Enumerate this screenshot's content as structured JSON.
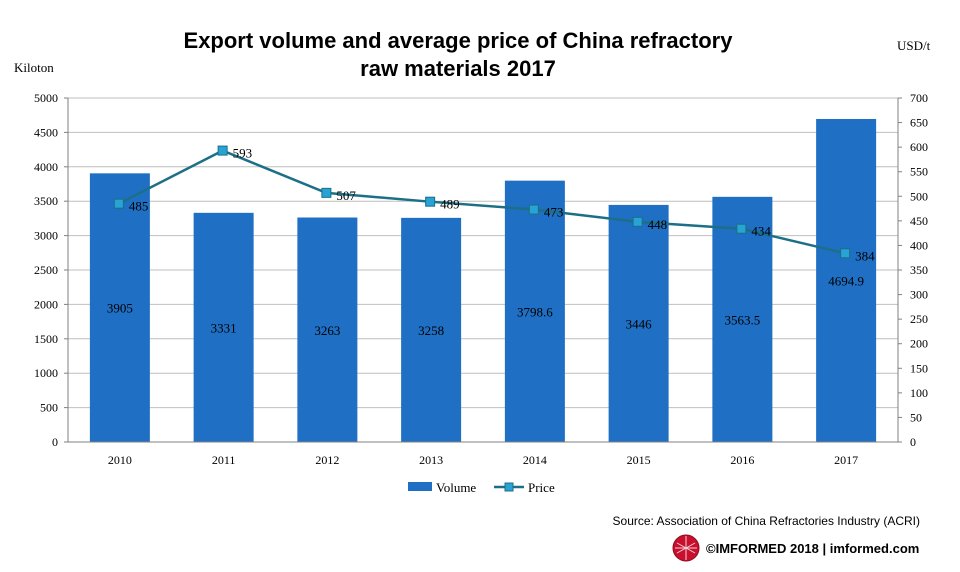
{
  "chart_data": {
    "type": "bar",
    "title_line1": "Export volume and average price of China refractory",
    "title_line2": "raw materials 2017",
    "y_left_unit": "Kiloton",
    "y_right_unit": "USD/t",
    "categories": [
      "2010",
      "2011",
      "2012",
      "2013",
      "2014",
      "2015",
      "2016",
      "2017"
    ],
    "series": [
      {
        "name": "Volume",
        "type": "bar",
        "axis": "left",
        "color": "#1F6FC4",
        "values": [
          3905,
          3331,
          3263,
          3258,
          3798.6,
          3446,
          3563.5,
          4694.9
        ],
        "labels": [
          "3905",
          "3331",
          "3263",
          "3258",
          "3798.6",
          "3446",
          "3563.5",
          "4694.9"
        ]
      },
      {
        "name": "Price",
        "type": "line",
        "axis": "right",
        "line_color": "#1C6F86",
        "marker_color": "#27A3D6",
        "values": [
          485,
          593,
          507,
          489,
          473,
          448,
          434,
          384
        ],
        "labels": [
          "485",
          "593",
          "507",
          "489",
          "473",
          "448",
          "434",
          "384"
        ]
      }
    ],
    "y_left": {
      "min": 0,
      "max": 5000,
      "step": 500
    },
    "y_right": {
      "min": 0,
      "max": 700,
      "step": 50
    },
    "grid": true,
    "legend": "bottom-center"
  },
  "footer": {
    "source": "Source: Association of China Refractories Industry (ACRI)",
    "brand": "©IMFORMED  2018  | imformed.com",
    "logo_color": "#C8102E"
  }
}
